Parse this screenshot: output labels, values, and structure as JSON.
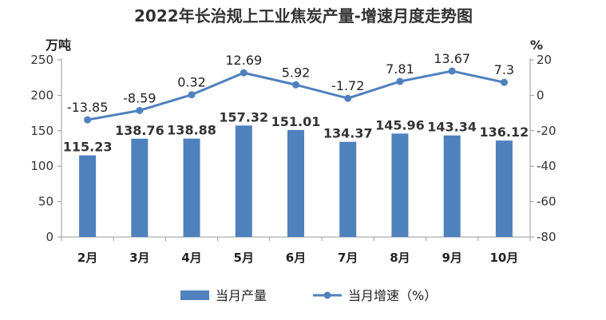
{
  "chart_data": {
    "type": "bar",
    "title": "2022年长治规上工业焦炭产量-增速月度走势图",
    "categories": [
      "2月",
      "3月",
      "4月",
      "5月",
      "6月",
      "7月",
      "8月",
      "9月",
      "10月"
    ],
    "left_axis": {
      "unit": "万吨",
      "range": [
        0,
        250
      ],
      "ticks": [
        "0",
        "50",
        "100",
        "150",
        "200",
        "250"
      ]
    },
    "right_axis": {
      "unit": "%",
      "range": [
        -80,
        20
      ],
      "ticks": [
        "-80",
        "-60",
        "-40",
        "-20",
        "0",
        "20"
      ]
    },
    "series": [
      {
        "name": "当月产量",
        "type": "bar",
        "axis": "left",
        "values": [
          115.23,
          138.76,
          138.88,
          157.32,
          151.01,
          134.37,
          145.96,
          143.34,
          136.12
        ],
        "labels": [
          "115.23",
          "138.76",
          "138.88",
          "157.32",
          "151.01",
          "134.37",
          "145.96",
          "143.34",
          "136.12"
        ]
      },
      {
        "name": "当月增速（%）",
        "type": "line",
        "axis": "right",
        "values": [
          -13.85,
          -8.59,
          0.32,
          12.69,
          5.92,
          -1.72,
          7.81,
          13.67,
          7.3
        ],
        "labels": [
          "-13.85",
          "-8.59",
          "0.32",
          "12.69",
          "5.92",
          "-1.72",
          "7.81",
          "13.67",
          "7.3"
        ]
      }
    ],
    "legend_position": "bottom",
    "grid": false,
    "colors": {
      "bar": "#4f81bd",
      "line": "#4f81bd",
      "marker": "#4f81bd"
    }
  }
}
